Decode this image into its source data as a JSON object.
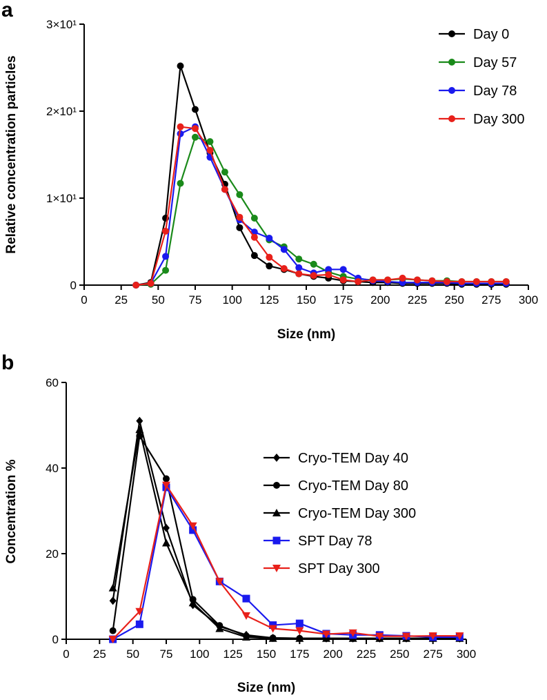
{
  "chart_data": [
    {
      "type": "line",
      "panel_label": "a",
      "title": "",
      "xlabel": "Size (nm)",
      "ylabel": "Relative concentration particles",
      "xlim": [
        0,
        300
      ],
      "ylim": [
        0,
        30
      ],
      "x_ticks": [
        0,
        25,
        50,
        75,
        100,
        125,
        150,
        175,
        200,
        225,
        250,
        275,
        300
      ],
      "x_tick_labels": [
        "0",
        "25",
        "50",
        "75",
        "100",
        "125",
        "150",
        "175",
        "200",
        "225",
        "250",
        "275",
        "300"
      ],
      "y_ticks": [
        0,
        10,
        20,
        30
      ],
      "y_tick_labels": [
        "0",
        "1×10¹",
        "2×10¹",
        "3×10¹"
      ],
      "grid": false,
      "legend_position": "top-right",
      "x": [
        35,
        45,
        55,
        65,
        75,
        85,
        95,
        105,
        115,
        125,
        135,
        145,
        155,
        165,
        175,
        185,
        195,
        205,
        215,
        225,
        235,
        245,
        255,
        265,
        275,
        285
      ],
      "series": [
        {
          "name": "Day 0",
          "color": "#000000",
          "marker": "circle",
          "values": [
            0,
            0.3,
            7.7,
            25.2,
            20.2,
            15.2,
            11.6,
            6.6,
            3.4,
            2.2,
            1.8,
            1.3,
            1.0,
            0.8,
            0.5,
            0.4,
            0.3,
            0.3,
            0.2,
            0.2,
            0.2,
            0.2,
            0.1,
            0.1,
            0.1,
            0.1
          ]
        },
        {
          "name": "Day 57",
          "color": "#1a8a1a",
          "marker": "circle",
          "values": [
            0,
            0.1,
            1.7,
            11.7,
            17.0,
            16.5,
            13.0,
            10.4,
            7.7,
            5.2,
            4.4,
            3.0,
            2.4,
            1.5,
            1.0,
            0.7,
            0.6,
            0.6,
            0.7,
            0.6,
            0.5,
            0.5,
            0.4,
            0.4,
            0.4,
            0.4
          ]
        },
        {
          "name": "Day 78",
          "color": "#1a1aee",
          "marker": "circle",
          "values": [
            0,
            0.2,
            3.3,
            17.4,
            18.2,
            14.7,
            11.0,
            7.5,
            6.1,
            5.4,
            4.1,
            2.0,
            1.4,
            1.8,
            1.8,
            0.8,
            0.5,
            0.4,
            0.3,
            0.3,
            0.3,
            0.3,
            0.2,
            0.2,
            0.2,
            0.2
          ]
        },
        {
          "name": "Day 300",
          "color": "#e8201a",
          "marker": "circle",
          "values": [
            0,
            0.2,
            6.2,
            18.2,
            18.0,
            15.5,
            11.0,
            7.8,
            5.5,
            3.2,
            1.9,
            1.3,
            1.1,
            1.2,
            0.6,
            0.4,
            0.6,
            0.6,
            0.8,
            0.6,
            0.5,
            0.4,
            0.4,
            0.4,
            0.4,
            0.4
          ]
        }
      ]
    },
    {
      "type": "line",
      "panel_label": "b",
      "title": "",
      "xlabel": "Size (nm)",
      "ylabel": "Concentration %",
      "xlim": [
        0,
        300
      ],
      "ylim": [
        0,
        60
      ],
      "x_ticks": [
        0,
        25,
        50,
        75,
        100,
        125,
        150,
        175,
        200,
        225,
        250,
        275,
        300
      ],
      "x_tick_labels": [
        "0",
        "25",
        "50",
        "75",
        "100",
        "125",
        "150",
        "175",
        "200",
        "225",
        "250",
        "275",
        "300"
      ],
      "y_ticks": [
        0,
        20,
        40,
        60
      ],
      "y_tick_labels": [
        "0",
        "20",
        "40",
        "60"
      ],
      "grid": false,
      "legend_position": "right",
      "x": [
        35,
        55,
        75,
        95,
        115,
        135,
        155,
        175,
        195,
        215,
        235,
        255,
        275,
        295
      ],
      "series": [
        {
          "name": "Cryo-TEM Day 40",
          "color": "#000000",
          "marker": "diamond",
          "values": [
            9.0,
            51.0,
            26.0,
            8.0,
            3.0,
            1.0,
            0.3,
            0.2,
            0.2,
            0.2,
            0.2,
            0.2,
            0.2,
            0.2
          ]
        },
        {
          "name": "Cryo-TEM Day 80",
          "color": "#000000",
          "marker": "circle",
          "values": [
            2.0,
            47.5,
            37.5,
            9.3,
            3.2,
            0.8,
            0.3,
            0.2,
            0.2,
            0.2,
            0.2,
            0.2,
            0.2,
            0.2
          ]
        },
        {
          "name": "Cryo-TEM Day 300",
          "color": "#000000",
          "marker": "triangle-up",
          "values": [
            12.0,
            49.0,
            22.5,
            8.5,
            2.5,
            0.5,
            0.2,
            0.2,
            0.2,
            0.2,
            0.2,
            0.2,
            0.2,
            0.2
          ]
        },
        {
          "name": "SPT Day 78",
          "color": "#1a1aee",
          "marker": "square",
          "values": [
            0.0,
            3.5,
            35.5,
            25.5,
            13.5,
            9.5,
            3.3,
            3.7,
            1.3,
            1.0,
            1.0,
            0.8,
            0.5,
            0.5
          ]
        },
        {
          "name": "SPT Day 300",
          "color": "#e8201a",
          "marker": "triangle-down",
          "values": [
            0.0,
            6.5,
            36.0,
            26.5,
            13.5,
            5.5,
            2.5,
            2.0,
            1.2,
            1.5,
            0.7,
            0.7,
            0.8,
            0.8
          ]
        }
      ]
    }
  ]
}
